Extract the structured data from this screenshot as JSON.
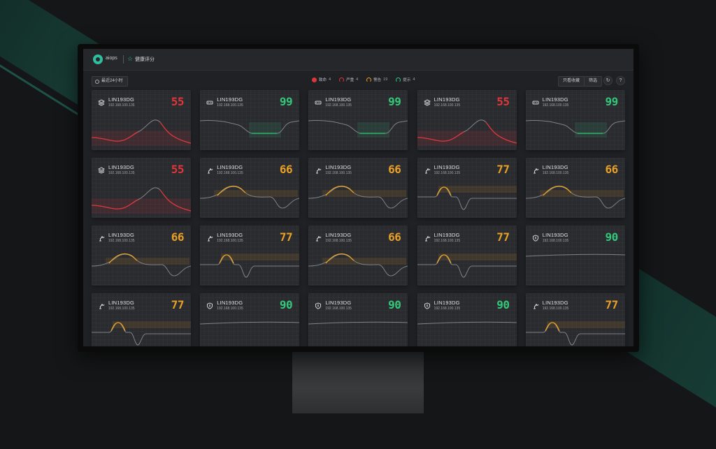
{
  "header": {
    "app_name": "aiops",
    "page_title": "健康评分"
  },
  "toolbar": {
    "time_range": "最近24小时",
    "legend": [
      {
        "label": "致命",
        "count": "4",
        "level": "critical"
      },
      {
        "label": "严重",
        "count": "4",
        "level": "severe"
      },
      {
        "label": "警告",
        "count": "19",
        "level": "warning"
      },
      {
        "label": "提示",
        "count": "4",
        "level": "notice"
      }
    ],
    "buttons": {
      "hide_btn": "只看收藏",
      "filter_btn": "筛选"
    }
  },
  "colors": {
    "critical": "#e0353a",
    "warning": "#e8a025",
    "good": "#34c77a",
    "accent": "#2fbfa0"
  },
  "cards": [
    {
      "name": "LIN193DG",
      "ip": "192.168.100.135",
      "score": "55",
      "level": "critical",
      "icon": "server-stack-icon",
      "chart": "peak"
    },
    {
      "name": "LIN193DG",
      "ip": "192.168.100.135",
      "score": "99",
      "level": "good",
      "icon": "network-device-icon",
      "chart": "dip"
    },
    {
      "name": "LIN193DG",
      "ip": "192.168.100.135",
      "score": "99",
      "level": "good",
      "icon": "network-device-icon",
      "chart": "dip"
    },
    {
      "name": "LIN193DG",
      "ip": "192.168.100.135",
      "score": "55",
      "level": "critical",
      "icon": "server-stack-icon",
      "chart": "peak"
    },
    {
      "name": "LIN193DG",
      "ip": "192.168.100.135",
      "score": "99",
      "level": "good",
      "icon": "network-device-icon",
      "chart": "dip"
    },
    {
      "name": "LIN193DG",
      "ip": "192.168.100.135",
      "score": "55",
      "level": "critical",
      "icon": "server-stack-icon",
      "chart": "peak"
    },
    {
      "name": "LIN193DG",
      "ip": "192.168.100.135",
      "score": "66",
      "level": "warning",
      "icon": "robot-arm-icon",
      "chart": "bump"
    },
    {
      "name": "LIN193DG",
      "ip": "192.168.100.135",
      "score": "66",
      "level": "warning",
      "icon": "robot-arm-icon",
      "chart": "bump"
    },
    {
      "name": "LIN193DG",
      "ip": "192.168.100.135",
      "score": "77",
      "level": "warning",
      "icon": "robot-arm-icon",
      "chart": "spike"
    },
    {
      "name": "LIN193DG",
      "ip": "192.168.100.135",
      "score": "66",
      "level": "warning",
      "icon": "robot-arm-icon",
      "chart": "bump"
    },
    {
      "name": "LIN193DG",
      "ip": "192.168.100.135",
      "score": "66",
      "level": "warning",
      "icon": "robot-arm-icon",
      "chart": "bump"
    },
    {
      "name": "LIN193DG",
      "ip": "192.168.100.135",
      "score": "77",
      "level": "warning",
      "icon": "robot-arm-icon",
      "chart": "spike"
    },
    {
      "name": "LIN193DG",
      "ip": "192.168.100.135",
      "score": "66",
      "level": "warning",
      "icon": "robot-arm-icon",
      "chart": "bump"
    },
    {
      "name": "LIN193DG",
      "ip": "192.168.100.135",
      "score": "77",
      "level": "warning",
      "icon": "robot-arm-icon",
      "chart": "spike"
    },
    {
      "name": "LIN193DG",
      "ip": "192.168.100.135",
      "score": "90",
      "level": "good",
      "icon": "shield-icon",
      "chart": "flat"
    },
    {
      "name": "LIN193DG",
      "ip": "192.168.100.135",
      "score": "77",
      "level": "warning",
      "icon": "robot-arm-icon",
      "chart": "spike"
    },
    {
      "name": "LIN193DG",
      "ip": "192.168.100.135",
      "score": "90",
      "level": "good",
      "icon": "shield-icon",
      "chart": "flat"
    },
    {
      "name": "LIN193DG",
      "ip": "192.168.100.135",
      "score": "90",
      "level": "good",
      "icon": "shield-icon",
      "chart": "flat"
    },
    {
      "name": "LIN193DG",
      "ip": "192.168.100.135",
      "score": "90",
      "level": "good",
      "icon": "shield-icon",
      "chart": "flat"
    },
    {
      "name": "LIN193DG",
      "ip": "192.168.100.135",
      "score": "77",
      "level": "warning",
      "icon": "robot-arm-icon",
      "chart": "spike"
    }
  ]
}
